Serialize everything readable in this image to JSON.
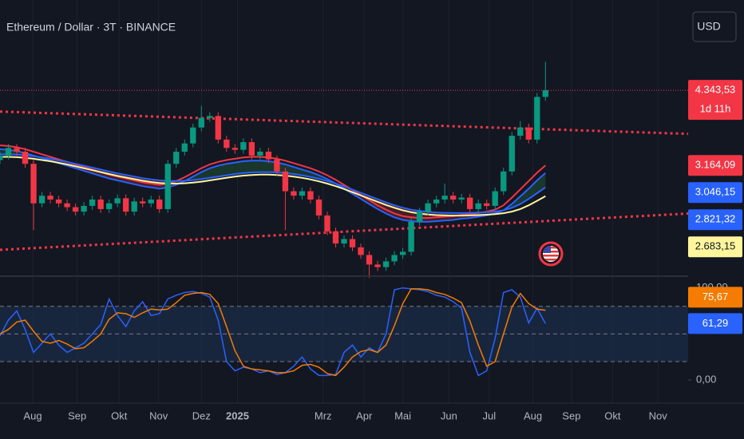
{
  "chart_data": [
    {
      "type": "candlestick",
      "title": "Ethereum / Dollar · 3T · BINANCE",
      "currency": "USD",
      "countdown": "1d 11h",
      "xlim": [
        0,
        82
      ],
      "ylim": [
        1440,
        5760
      ],
      "up_color": "#089981",
      "down_color": "#f23645",
      "open": [
        3250,
        3320,
        3440,
        3380,
        3190,
        2570,
        2690,
        2630,
        2570,
        2510,
        2440,
        2530,
        2630,
        2480,
        2570,
        2650,
        2440,
        2600,
        2570,
        2630,
        2480,
        3190,
        3380,
        3510,
        3760,
        3910,
        3940,
        3570,
        3440,
        3410,
        3530,
        3320,
        3380,
        3260,
        3070,
        2760,
        2690,
        2760,
        2630,
        2380,
        2130,
        1940,
        2010,
        1880,
        1760,
        1610,
        1570,
        1660,
        1760,
        1810,
        2280,
        2440,
        2570,
        2630,
        2690,
        2630,
        2660,
        2480,
        2570,
        2530,
        2760,
        3070,
        3630,
        3760,
        3570,
        4240
      ],
      "high": [
        3380,
        3500,
        3500,
        3440,
        3250,
        2750,
        2750,
        2690,
        2630,
        2570,
        2590,
        2690,
        2690,
        2630,
        2710,
        2710,
        2660,
        2660,
        2690,
        2690,
        3250,
        3440,
        3570,
        3820,
        4100,
        4000,
        4000,
        3630,
        3500,
        3590,
        3590,
        3440,
        3440,
        3320,
        3130,
        2820,
        2820,
        2820,
        2690,
        2440,
        2190,
        2070,
        2070,
        1940,
        1820,
        1670,
        1720,
        1820,
        1870,
        2340,
        2500,
        2630,
        2690,
        2880,
        2750,
        2720,
        2720,
        2630,
        2630,
        2820,
        3130,
        3690,
        3860,
        3820,
        4300,
        4790
      ],
      "low": [
        3190,
        3260,
        3320,
        3130,
        2150,
        2510,
        2570,
        2510,
        2450,
        2380,
        2380,
        2470,
        2420,
        2420,
        2510,
        2380,
        2380,
        2510,
        2510,
        2420,
        2420,
        3130,
        3320,
        3450,
        3700,
        3850,
        3510,
        3380,
        3350,
        3350,
        3260,
        3260,
        3200,
        3010,
        2150,
        2630,
        2630,
        2570,
        2320,
        2070,
        1880,
        1880,
        1820,
        1700,
        1400,
        1510,
        1510,
        1600,
        1700,
        1750,
        2220,
        2380,
        2510,
        2570,
        2570,
        2570,
        2420,
        2420,
        2470,
        2470,
        2700,
        3010,
        3570,
        3510,
        3510,
        4180
      ],
      "close": [
        3320,
        3440,
        3380,
        3190,
        2570,
        2690,
        2630,
        2570,
        2510,
        2440,
        2530,
        2630,
        2480,
        2570,
        2650,
        2440,
        2600,
        2570,
        2630,
        2480,
        3190,
        3380,
        3510,
        3760,
        3910,
        3940,
        3570,
        3440,
        3410,
        3530,
        3320,
        3380,
        3260,
        3070,
        2760,
        2690,
        2760,
        2630,
        2380,
        2130,
        1940,
        2010,
        1880,
        1760,
        1610,
        1570,
        1660,
        1760,
        1810,
        2280,
        2440,
        2570,
        2630,
        2690,
        2630,
        2660,
        2480,
        2570,
        2530,
        2760,
        3070,
        3630,
        3760,
        3570,
        4240,
        4343.53
      ],
      "close_label": "4.343,53",
      "ribbon_colors": [
        "#1c3b2e",
        "#4a2029"
      ],
      "series": [
        {
          "color": "#f23645",
          "values": [
            3480,
            3470,
            3450,
            3420,
            3380,
            3340,
            3300,
            3260,
            3220,
            3180,
            3140,
            3100,
            3060,
            3020,
            2990,
            2960,
            2930,
            2900,
            2880,
            2860,
            2880,
            2920,
            2980,
            3050,
            3120,
            3180,
            3220,
            3250,
            3270,
            3290,
            3300,
            3300,
            3290,
            3270,
            3240,
            3200,
            3160,
            3120,
            3070,
            3010,
            2940,
            2860,
            2780,
            2700,
            2620,
            2540,
            2470,
            2410,
            2370,
            2350,
            2340,
            2340,
            2350,
            2360,
            2370,
            2390,
            2400,
            2420,
            2440,
            2470,
            2540,
            2660,
            2790,
            2920,
            3050,
            3164.09
          ],
          "last_label": "3.164,09"
        },
        {
          "color": "#2962ff",
          "values": [
            3420,
            3410,
            3390,
            3360,
            3320,
            3280,
            3240,
            3200,
            3160,
            3120,
            3080,
            3040,
            3000,
            2960,
            2930,
            2900,
            2870,
            2840,
            2820,
            2800,
            2820,
            2860,
            2920,
            2990,
            3060,
            3120,
            3160,
            3190,
            3210,
            3230,
            3240,
            3240,
            3230,
            3210,
            3180,
            3140,
            3100,
            3060,
            3010,
            2950,
            2880,
            2800,
            2720,
            2640,
            2560,
            2480,
            2410,
            2350,
            2310,
            2290,
            2280,
            2280,
            2290,
            2300,
            2310,
            2330,
            2340,
            2360,
            2380,
            2410,
            2460,
            2560,
            2680,
            2800,
            2930,
            3046.15
          ],
          "last_label": "3.046,15"
        },
        {
          "color": "#2962ff",
          "values": [
            3340,
            3340,
            3335,
            3325,
            3310,
            3290,
            3270,
            3245,
            3220,
            3190,
            3160,
            3130,
            3100,
            3070,
            3040,
            3015,
            2990,
            2965,
            2945,
            2930,
            2920,
            2920,
            2925,
            2935,
            2950,
            2970,
            2990,
            3010,
            3030,
            3045,
            3055,
            3060,
            3060,
            3055,
            3045,
            3030,
            3010,
            2985,
            2955,
            2920,
            2880,
            2835,
            2785,
            2735,
            2685,
            2635,
            2585,
            2540,
            2500,
            2470,
            2450,
            2435,
            2425,
            2420,
            2418,
            2418,
            2420,
            2425,
            2432,
            2440,
            2460,
            2500,
            2560,
            2640,
            2730,
            2821.32
          ],
          "last_label": "2.821,32"
        },
        {
          "color": "#fff59d",
          "values": [
            3300,
            3300,
            3295,
            3285,
            3270,
            3250,
            3230,
            3205,
            3180,
            3150,
            3120,
            3090,
            3060,
            3030,
            3000,
            2975,
            2950,
            2925,
            2905,
            2890,
            2880,
            2880,
            2885,
            2895,
            2910,
            2930,
            2950,
            2970,
            2990,
            3005,
            3015,
            3020,
            3020,
            3015,
            3005,
            2990,
            2970,
            2945,
            2915,
            2880,
            2840,
            2795,
            2745,
            2695,
            2645,
            2595,
            2545,
            2500,
            2460,
            2430,
            2410,
            2395,
            2385,
            2380,
            2378,
            2378,
            2380,
            2385,
            2392,
            2400,
            2415,
            2440,
            2480,
            2540,
            2610,
            2683.15
          ],
          "last_label": "2.683,15"
        }
      ],
      "trendlines": [
        {
          "color": "#f23645",
          "x": [
            0,
            82
          ],
          "y": [
            4010,
            3660
          ]
        },
        {
          "color": "#f23645",
          "x": [
            0,
            82
          ],
          "y": [
            1840,
            2410
          ]
        }
      ]
    },
    {
      "type": "line",
      "xlim": [
        0,
        82
      ],
      "ylim": [
        -12,
        111
      ],
      "yticks": [
        {
          "value": 100,
          "label": "100,00"
        },
        {
          "value": 0,
          "label": "0,00"
        }
      ],
      "levels": [
        80,
        50,
        20
      ],
      "band_color": "#1a2a45",
      "xticks": [
        {
          "value": 3.9,
          "label": "Aug"
        },
        {
          "value": 9.2,
          "label": "Sep"
        },
        {
          "value": 14.2,
          "label": "Okt"
        },
        {
          "value": 18.9,
          "label": "Nov"
        },
        {
          "value": 24.0,
          "label": "Dez"
        },
        {
          "value": 28.3,
          "label": "2025"
        },
        {
          "value": 38.5,
          "label": "Mrz"
        },
        {
          "value": 43.4,
          "label": "Apr"
        },
        {
          "value": 48.0,
          "label": "Mai"
        },
        {
          "value": 53.5,
          "label": "Jun"
        },
        {
          "value": 58.3,
          "label": "Jul"
        },
        {
          "value": 63.5,
          "label": "Aug"
        },
        {
          "value": 68.1,
          "label": "Sep"
        },
        {
          "value": 73.0,
          "label": "Okt"
        },
        {
          "value": 78.4,
          "label": "Nov"
        }
      ],
      "series": [
        {
          "color": "#2962ff",
          "values": [
            48,
            65,
            75,
            55,
            30,
            40,
            50,
            38,
            30,
            35,
            40,
            50,
            60,
            88,
            70,
            58,
            75,
            85,
            70,
            72,
            88,
            92,
            95,
            96,
            94,
            90,
            65,
            20,
            10,
            14,
            12,
            8,
            10,
            6,
            8,
            15,
            25,
            12,
            5,
            5,
            6,
            30,
            38,
            25,
            35,
            30,
            50,
            98,
            100,
            99,
            98,
            96,
            92,
            90,
            85,
            78,
            30,
            5,
            10,
            45,
            95,
            98,
            90,
            62,
            78,
            61.29
          ],
          "last_label": "61,29"
        },
        {
          "color": "#f57c00",
          "values": [
            50,
            55,
            63,
            65,
            53,
            42,
            40,
            43,
            39,
            34,
            35,
            42,
            50,
            66,
            73,
            72,
            68,
            73,
            77,
            76,
            77,
            84,
            92,
            94,
            95,
            93,
            83,
            58,
            32,
            15,
            12,
            11,
            10,
            8,
            8,
            10,
            16,
            17,
            14,
            7,
            5,
            14,
            25,
            31,
            33,
            30,
            38,
            59,
            83,
            99,
            99,
            98,
            95,
            93,
            89,
            84,
            64,
            38,
            15,
            20,
            50,
            79,
            94,
            83,
            77,
            75.67
          ],
          "last_label": "75,67"
        }
      ]
    }
  ]
}
